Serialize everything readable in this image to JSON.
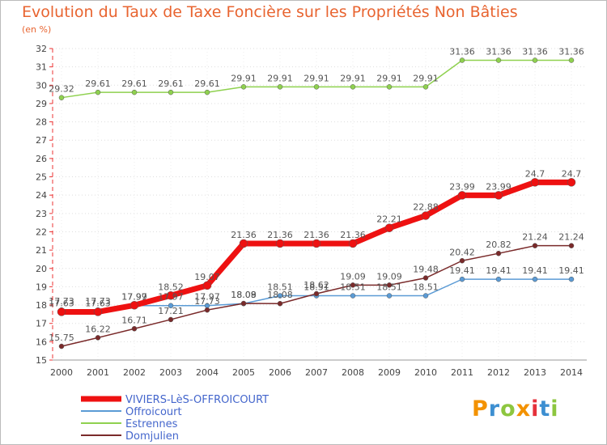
{
  "chart_data": {
    "type": "line",
    "title": "Evolution du Taux de Taxe Foncière sur les Propriétés Non Bâties",
    "unit_label": "(en %)",
    "xlabel": "",
    "ylabel": "",
    "x": [
      "2000",
      "2001",
      "2002",
      "2003",
      "2004",
      "2005",
      "2006",
      "2007",
      "2008",
      "2009",
      "2010",
      "2011",
      "2012",
      "2013",
      "2014"
    ],
    "ylim": [
      15,
      32
    ],
    "yticks": [
      15,
      16,
      17,
      18,
      19,
      20,
      21,
      22,
      23,
      24,
      25,
      26,
      27,
      28,
      29,
      30,
      31,
      32
    ],
    "grid": "horizontal-dotted",
    "legend_position": "bottom-left",
    "series": [
      {
        "name": "VIVIERS-LèS-OFFROICOURT",
        "color": "#ee1111",
        "values": [
          17.63,
          17.63,
          17.99,
          18.52,
          19.07,
          21.36,
          21.36,
          21.36,
          21.36,
          22.21,
          22.88,
          23.99,
          23.99,
          24.7,
          24.7
        ],
        "labels": [
          "17.63",
          "17.63",
          "17.99",
          "18.52",
          "19.07",
          "21.36",
          "21.36",
          "21.36",
          "21.36",
          "22.21",
          "22.88",
          "23.99",
          "23.99",
          "24.7",
          "24.7"
        ]
      },
      {
        "name": "Offroicourt",
        "color": "#5b9bd5",
        "values": [
          17.73,
          17.73,
          17.97,
          17.97,
          17.97,
          18.08,
          18.51,
          18.51,
          18.51,
          18.51,
          18.51,
          19.41,
          19.41,
          19.41,
          19.41
        ],
        "labels": [
          "17.73",
          "17.73",
          "17.97",
          "17.97",
          "17.97",
          "18.08",
          "18.51",
          "18.51",
          "18.51",
          "18.51",
          "18.51",
          "19.41",
          "19.41",
          "19.41",
          "19.41"
        ]
      },
      {
        "name": "Estrennes",
        "color": "#8fd14f",
        "values": [
          29.32,
          29.61,
          29.61,
          29.61,
          29.61,
          29.91,
          29.91,
          29.91,
          29.91,
          29.91,
          29.91,
          31.36,
          31.36,
          31.36,
          31.36
        ],
        "labels": [
          "29.32",
          "29.61",
          "29.61",
          "29.61",
          "29.61",
          "29.91",
          "29.91",
          "29.91",
          "29.91",
          "29.91",
          "29.91",
          "31.36",
          "31.36",
          "31.36",
          "31.36"
        ]
      },
      {
        "name": "Domjulien",
        "color": "#7a2a2a",
        "values": [
          15.75,
          16.22,
          16.71,
          17.21,
          17.73,
          18.09,
          18.08,
          18.62,
          19.09,
          19.09,
          19.48,
          20.42,
          20.82,
          21.24,
          21.24
        ],
        "labels": [
          "15.75",
          "16.22",
          "16.71",
          "17.21",
          "17.73",
          "18.09",
          "18.08",
          "18.62",
          "19.09",
          "19.09",
          "19.48",
          "20.42",
          "20.82",
          "21.24",
          "21.24"
        ]
      }
    ]
  },
  "logo": {
    "text": "Proxiti",
    "colors": [
      "#f39200",
      "#3d8fd1",
      "#8dc63f",
      "#f39200",
      "#e5313b",
      "#3d8fd1",
      "#8dc63f"
    ]
  }
}
